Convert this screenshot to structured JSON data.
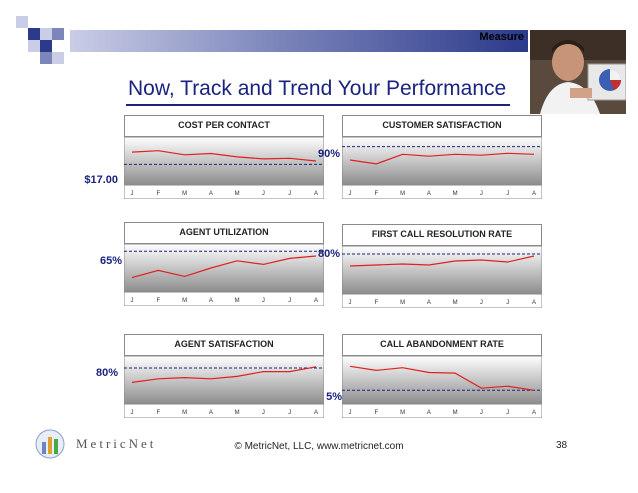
{
  "header": {
    "section_label": "Measure"
  },
  "title": "Now, Track and Trend Your Performance",
  "footer": {
    "brand": "MetricNet",
    "copyright": "© MetricNet, LLC, www.metricnet.com",
    "page": "38"
  },
  "colors": {
    "accent": "#1a237e",
    "line": "#e02020",
    "target": "#1a237e",
    "plot_top": "#ffffff",
    "plot_bottom": "#8c8c8c"
  },
  "chart_data": [
    {
      "type": "line",
      "title": "COST PER CONTACT",
      "target_label": "$17.00",
      "target": 17.0,
      "categories": [
        "J",
        "F",
        "M",
        "A",
        "M",
        "J",
        "J",
        "A"
      ],
      "values": [
        18.8,
        19.0,
        18.4,
        18.6,
        18.1,
        17.8,
        17.9,
        17.5
      ],
      "ylim": [
        14,
        21
      ]
    },
    {
      "type": "line",
      "title": "CUSTOMER SATISFACTION",
      "target_label": "90%",
      "target": 90,
      "categories": [
        "J",
        "F",
        "M",
        "A",
        "M",
        "J",
        "J",
        "A"
      ],
      "values": [
        83,
        81,
        86,
        85,
        86,
        85.5,
        86.5,
        86
      ],
      "ylim": [
        70,
        95
      ]
    },
    {
      "type": "line",
      "title": "AGENT UTILIZATION",
      "target_label": "65%",
      "target": 65,
      "categories": [
        "J",
        "F",
        "M",
        "A",
        "M",
        "J",
        "J",
        "A"
      ],
      "values": [
        54,
        57,
        54.5,
        58,
        61,
        59.5,
        62,
        63
      ],
      "ylim": [
        48,
        68
      ]
    },
    {
      "type": "line",
      "title": "FIRST CALL RESOLUTION RATE",
      "target_label": "80%",
      "target": 80,
      "categories": [
        "J",
        "F",
        "M",
        "A",
        "M",
        "J",
        "J",
        "A"
      ],
      "values": [
        74,
        74.5,
        75,
        74.5,
        76.5,
        77,
        76,
        79
      ],
      "ylim": [
        60,
        84
      ]
    },
    {
      "type": "line",
      "title": "AGENT SATISFACTION",
      "target_label": "80%",
      "target": 80,
      "categories": [
        "J",
        "F",
        "M",
        "A",
        "M",
        "J",
        "J",
        "A"
      ],
      "values": [
        74,
        75.5,
        76,
        75.5,
        76.5,
        78.5,
        78.5,
        80.5
      ],
      "ylim": [
        65,
        85
      ]
    },
    {
      "type": "line",
      "title": "CALL ABANDONMENT RATE",
      "target_label": "5%",
      "target": 5,
      "categories": [
        "J",
        "F",
        "M",
        "A",
        "M",
        "J",
        "J",
        "A"
      ],
      "values": [
        8.5,
        7.9,
        8.3,
        7.6,
        7.5,
        5.3,
        5.6,
        5.0
      ],
      "ylim": [
        3,
        10
      ]
    }
  ]
}
